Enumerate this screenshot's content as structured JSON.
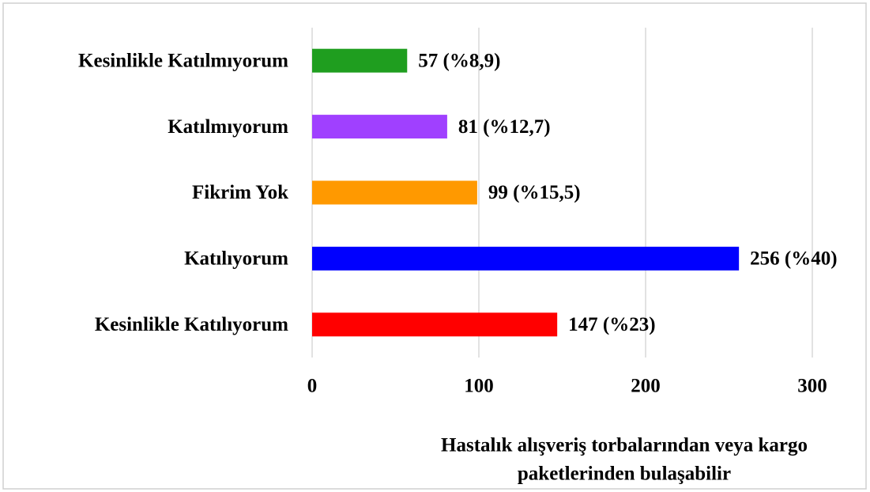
{
  "chart_data": {
    "type": "hbar",
    "categories": [
      "Kesinlikle Katılmıyorum",
      "Katılmıyorum",
      "Fikrim Yok",
      "Katılıyorum",
      "Kesinlikle Katılıyorum"
    ],
    "values": [
      57,
      81,
      99,
      256,
      147
    ],
    "value_labels": [
      "57 (%8,9)",
      "81 (%12,7)",
      "99 (%15,5)",
      "256 (%40)",
      "147 (%23)"
    ],
    "colors": [
      "#1f9e1f",
      "#a040ff",
      "#ff9900",
      "#0000ff",
      "#ff0000"
    ],
    "xlabel": [
      "Hastalık alışveriş torbalarından veya kargo",
      "paketlerinden bulaşabilir"
    ],
    "xlim": [
      0,
      300
    ],
    "xticks": [
      0,
      100,
      200,
      300
    ],
    "grid": true
  }
}
